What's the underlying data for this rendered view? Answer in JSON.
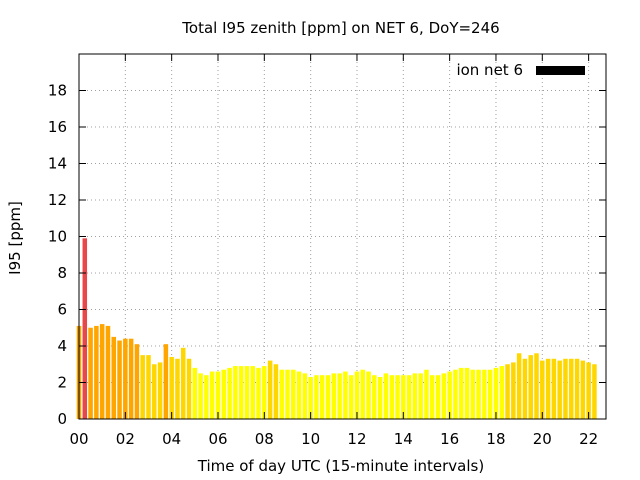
{
  "chart_data": {
    "type": "bar",
    "title": "Total I95 zenith [ppm] on NET 6, DoY=246",
    "xlabel": "Time of day UTC (15-minute intervals)",
    "ylabel": "I95 [ppm]",
    "xlim": [
      0,
      22.75
    ],
    "ylim": [
      0,
      20
    ],
    "xticks": [
      "00",
      "02",
      "04",
      "06",
      "08",
      "10",
      "12",
      "14",
      "16",
      "18",
      "20",
      "22"
    ],
    "yticks": [
      "0",
      "2",
      "4",
      "6",
      "8",
      "10",
      "12",
      "14",
      "16",
      "18"
    ],
    "grid": true,
    "legend": {
      "position": "top-right",
      "entries": [
        {
          "label": "ion net 6",
          "color": "#000000"
        }
      ]
    },
    "colors": {
      "low": "#ffff00",
      "mid_low": "#ffd700",
      "mid_high": "#ffa500",
      "high": "#e8474a"
    },
    "series": [
      {
        "interval_hours": 0.25,
        "values": [
          5.1,
          9.9,
          5.0,
          5.1,
          5.2,
          5.1,
          4.5,
          4.3,
          4.4,
          4.4,
          4.1,
          3.5,
          3.5,
          3.0,
          3.1,
          4.1,
          3.4,
          3.3,
          3.9,
          3.3,
          2.8,
          2.5,
          2.4,
          2.6,
          2.6,
          2.7,
          2.8,
          2.9,
          2.9,
          2.9,
          2.9,
          2.8,
          2.9,
          3.2,
          3.0,
          2.7,
          2.7,
          2.7,
          2.6,
          2.5,
          2.3,
          2.4,
          2.4,
          2.4,
          2.5,
          2.5,
          2.6,
          2.4,
          2.6,
          2.7,
          2.6,
          2.4,
          2.3,
          2.5,
          2.4,
          2.4,
          2.4,
          2.4,
          2.5,
          2.5,
          2.7,
          2.4,
          2.4,
          2.5,
          2.6,
          2.7,
          2.8,
          2.8,
          2.7,
          2.7,
          2.7,
          2.7,
          2.8,
          2.9,
          3.0,
          3.1,
          3.6,
          3.3,
          3.5,
          3.6,
          3.2,
          3.3,
          3.3,
          3.2,
          3.3,
          3.3,
          3.3,
          3.2,
          3.1,
          3.0
        ]
      }
    ]
  }
}
